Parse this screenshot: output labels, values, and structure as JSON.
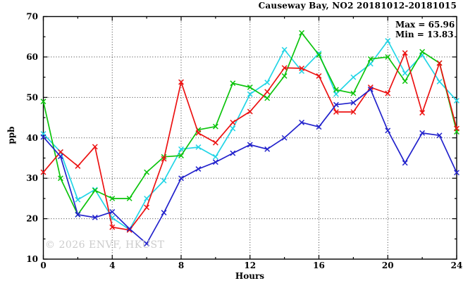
{
  "chart_data": {
    "type": "line",
    "title": "Causeway Bay, NO2 20181012-20181015",
    "xlabel": "Hours",
    "ylabel": "ppb",
    "xlim": [
      0,
      24
    ],
    "ylim": [
      10,
      70
    ],
    "xticks": [
      0,
      4,
      8,
      12,
      16,
      20,
      24
    ],
    "yticks": [
      10,
      20,
      30,
      40,
      50,
      60,
      70
    ],
    "x_minor_step": 2,
    "y_minor_step": 5,
    "grid": "dotted lines at interior major ticks, mirrored inward ticks on all four borders",
    "legend_position": "none",
    "marker": "x-cross",
    "x": [
      0,
      1,
      2,
      3,
      4,
      5,
      6,
      7,
      8,
      9,
      10,
      11,
      12,
      13,
      14,
      15,
      16,
      17,
      18,
      19,
      20,
      21,
      22,
      23,
      24
    ],
    "series": [
      {
        "name": "series-cyan",
        "color": "#22d5e6",
        "values": [
          41.0,
          36.5,
          24.7,
          27.2,
          20.2,
          17.3,
          25.0,
          29.4,
          37.2,
          37.7,
          35.3,
          42.3,
          50.8,
          53.7,
          61.8,
          56.5,
          60.9,
          50.8,
          55.0,
          58.3,
          64.0,
          56.0,
          60.5,
          53.9,
          49.2
        ]
      },
      {
        "name": "series-green",
        "color": "#0cc40c",
        "values": [
          49.0,
          30.0,
          21.0,
          27.0,
          25.0,
          25.0,
          31.5,
          35.3,
          35.6,
          42.0,
          42.8,
          53.5,
          52.5,
          49.8,
          55.3,
          65.96,
          60.5,
          51.9,
          51.0,
          59.5,
          60.0,
          54.0,
          61.3,
          58.5,
          41.5
        ]
      },
      {
        "name": "series-red",
        "color": "#ec1212",
        "values": [
          31.5,
          36.5,
          33.0,
          37.8,
          17.9,
          17.2,
          22.8,
          34.8,
          53.8,
          41.2,
          38.8,
          43.8,
          46.5,
          51.4,
          57.3,
          57.2,
          55.3,
          46.4,
          46.4,
          52.5,
          51.0,
          61.0,
          46.2,
          58.5,
          42.3
        ]
      },
      {
        "name": "series-blue",
        "color": "#2222cc",
        "values": [
          40.2,
          35.4,
          21.0,
          20.3,
          21.7,
          17.5,
          13.83,
          21.5,
          30.0,
          32.3,
          34.0,
          36.2,
          38.3,
          37.2,
          40.0,
          43.8,
          42.7,
          48.2,
          48.7,
          52.0,
          41.8,
          33.8,
          41.2,
          40.6,
          31.4
        ]
      }
    ],
    "annotations": {
      "max_label": "Max = 65.96",
      "min_label": "Min = 13.83"
    },
    "watermark": "© 2026 ENVF, HKUST"
  }
}
